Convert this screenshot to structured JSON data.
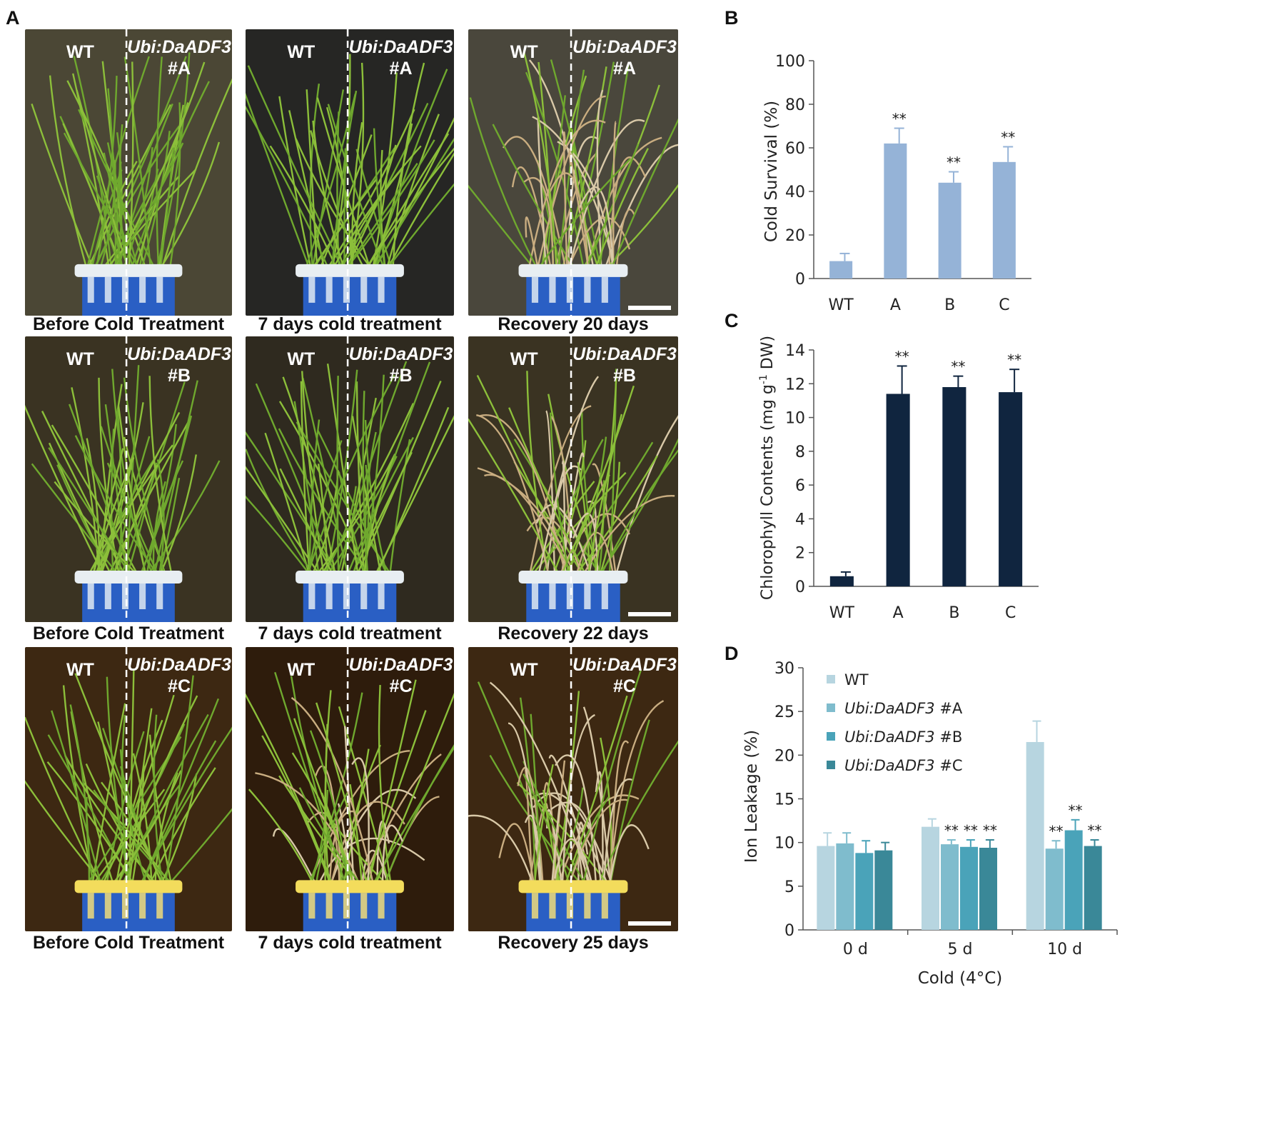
{
  "panel_labels": {
    "a": "A",
    "b": "B",
    "c": "C",
    "d": "D"
  },
  "photo_labels": {
    "wt": "WT",
    "construct": "Ubi:DaADF3"
  },
  "photo_rows": [
    {
      "line": "#A",
      "captions": [
        "Before Cold Treatment",
        "7 days cold treatment",
        "Recovery 20 days"
      ]
    },
    {
      "line": "#B",
      "captions": [
        "Before Cold Treatment",
        "7 days cold treatment",
        "Recovery 22 days"
      ]
    },
    {
      "line": "#C",
      "captions": [
        "Before Cold Treatment",
        "7 days cold treatment",
        "Recovery 25 days"
      ]
    }
  ],
  "colors": {
    "panel_b_bar": "#95b3d7",
    "panel_c_bar": "#10253f",
    "wt_series": "#b7d5e0",
    "a_series": "#7fbccd",
    "b_series": "#4aa3b9",
    "c_series": "#3a8898"
  },
  "chart_data": [
    {
      "panel": "B",
      "type": "bar",
      "ylabel": "Cold Survival (%)",
      "xlabel": "",
      "categories": [
        "WT",
        "A",
        "B",
        "C"
      ],
      "values": [
        8,
        62,
        44,
        53.5
      ],
      "errors": [
        3.5,
        7,
        5,
        7
      ],
      "significance": [
        "",
        "**",
        "**",
        "**"
      ],
      "ylim": [
        0,
        100
      ],
      "yticks": [
        0,
        20,
        40,
        60,
        80,
        100
      ]
    },
    {
      "panel": "C",
      "type": "bar",
      "ylabel": "Chlorophyll Contents (mg g-1 DW)",
      "ylabel_parts": {
        "pre": "Chlorophyll Contents (mg g",
        "sup": "-1",
        "post": " DW)"
      },
      "xlabel": "",
      "categories": [
        "WT",
        "A",
        "B",
        "C"
      ],
      "values": [
        0.6,
        11.4,
        11.8,
        11.5
      ],
      "errors": [
        0.25,
        1.65,
        0.65,
        1.35
      ],
      "significance": [
        "",
        "**",
        "**",
        "**"
      ],
      "ylim": [
        0,
        14
      ],
      "yticks": [
        0,
        2,
        4,
        6,
        8,
        10,
        12,
        14
      ]
    },
    {
      "panel": "D",
      "type": "bar",
      "ylabel": "Ion Leakage (%)",
      "xlabel": "Cold (4°C)",
      "categories": [
        "0 d",
        "5 d",
        "10 d"
      ],
      "series": [
        {
          "name": "WT",
          "name_italic": "",
          "name_rest": "WT",
          "values": [
            9.6,
            11.8,
            21.5
          ],
          "errors": [
            1.5,
            0.9,
            2.4
          ],
          "significance": [
            "",
            "",
            ""
          ]
        },
        {
          "name": "Ubi:DaADF3 #A",
          "name_italic": "Ubi:DaADF3",
          "name_rest": " #A",
          "values": [
            9.9,
            9.8,
            9.3
          ],
          "errors": [
            1.2,
            0.5,
            0.9
          ],
          "significance": [
            "",
            "**",
            "**"
          ]
        },
        {
          "name": "Ubi:DaADF3 #B",
          "name_italic": "Ubi:DaADF3",
          "name_rest": " #B",
          "values": [
            8.8,
            9.5,
            11.4
          ],
          "errors": [
            1.4,
            0.8,
            1.2
          ],
          "significance": [
            "",
            "**",
            "**"
          ]
        },
        {
          "name": "Ubi:DaADF3 #C",
          "name_italic": "Ubi:DaADF3",
          "name_rest": " #C",
          "values": [
            9.1,
            9.4,
            9.6
          ],
          "errors": [
            0.9,
            0.9,
            0.7
          ],
          "significance": [
            "",
            "**",
            "**"
          ]
        }
      ],
      "ylim": [
        0,
        30
      ],
      "yticks": [
        0,
        5,
        10,
        15,
        20,
        25,
        30
      ],
      "legend_position": "top-left"
    }
  ]
}
